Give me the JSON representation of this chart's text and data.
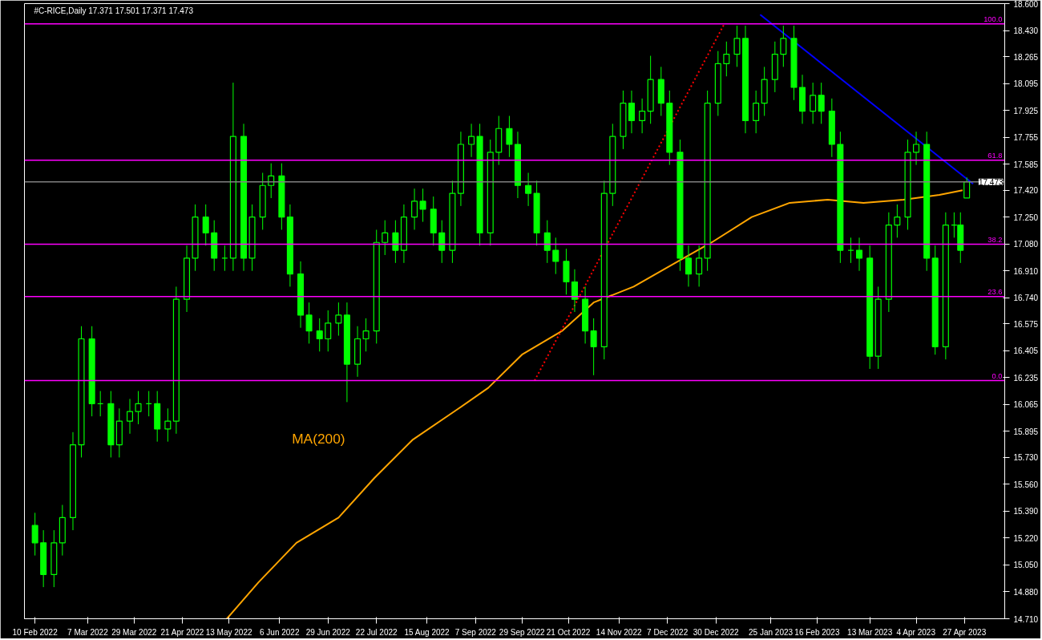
{
  "chart_data": {
    "type": "candlestick",
    "title": "#C-RICE,Daily  17.371 17.501 17.371 17.473",
    "color": "#00ff00",
    "x": [
      "2022-02-10",
      "2022-02-14",
      "2022-02-19",
      "2022-02-23",
      "2022-02-28",
      "2022-03-04",
      "2022-03-09",
      "2022-03-13",
      "2022-03-18",
      "2022-03-22",
      "2022-03-27",
      "2022-03-31",
      "2022-04-05",
      "2022-04-09",
      "2022-04-14",
      "2022-04-18",
      "2022-04-23",
      "2022-04-27",
      "2022-05-02",
      "2022-05-06",
      "2022-05-11",
      "2022-05-15",
      "2022-05-20",
      "2022-05-24",
      "2022-05-29",
      "2022-06-02",
      "2022-06-07",
      "2022-06-11",
      "2022-06-16",
      "2022-06-20",
      "2022-06-25",
      "2022-06-29",
      "2022-07-04",
      "2022-07-08",
      "2022-07-13",
      "2022-07-17",
      "2022-07-22",
      "2022-07-26",
      "2022-07-31",
      "2022-08-04",
      "2022-08-09",
      "2022-08-13",
      "2022-08-18",
      "2022-08-22",
      "2022-08-27",
      "2022-08-31",
      "2022-09-05",
      "2022-09-09",
      "2022-09-14",
      "2022-09-18",
      "2022-09-23",
      "2022-09-27",
      "2022-10-02",
      "2022-10-06",
      "2022-10-11",
      "2022-10-15",
      "2022-10-20",
      "2022-10-24",
      "2022-10-29",
      "2022-11-02",
      "2022-11-07",
      "2022-11-11",
      "2022-11-16",
      "2022-11-20",
      "2022-11-25",
      "2022-11-29",
      "2022-12-04",
      "2022-12-08",
      "2022-12-13",
      "2022-12-17",
      "2022-12-22",
      "2022-12-26",
      "2022-12-31",
      "2023-01-04",
      "2023-01-09",
      "2023-01-13",
      "2023-01-18",
      "2023-01-22",
      "2023-01-27",
      "2023-01-31",
      "2023-02-05",
      "2023-02-09",
      "2023-02-14",
      "2023-02-18",
      "2023-02-23",
      "2023-02-27",
      "2023-03-04",
      "2023-03-08",
      "2023-03-13",
      "2023-03-17",
      "2023-03-22",
      "2023-03-26",
      "2023-03-31",
      "2023-04-04",
      "2023-04-09",
      "2023-04-13",
      "2023-04-18",
      "2023-04-22",
      "2023-04-25",
      "2023-04-28"
    ],
    "ohlc": [
      [
        15.3,
        15.38,
        15.11,
        15.19
      ],
      [
        15.19,
        15.27,
        14.91,
        14.99
      ],
      [
        14.99,
        15.27,
        14.91,
        15.19
      ],
      [
        15.19,
        15.43,
        15.11,
        15.35
      ],
      [
        15.35,
        15.89,
        15.27,
        15.81
      ],
      [
        15.81,
        16.56,
        15.73,
        16.48
      ],
      [
        16.48,
        16.56,
        15.99,
        16.07
      ],
      [
        16.07,
        16.15,
        15.99,
        16.07
      ],
      [
        16.07,
        16.15,
        15.73,
        15.81
      ],
      [
        15.81,
        16.04,
        15.73,
        15.96
      ],
      [
        15.96,
        16.1,
        15.88,
        16.02
      ],
      [
        16.02,
        16.15,
        15.94,
        16.07
      ],
      [
        16.07,
        16.15,
        15.99,
        16.07
      ],
      [
        16.07,
        16.15,
        15.83,
        15.91
      ],
      [
        15.91,
        16.04,
        15.83,
        15.96
      ],
      [
        15.96,
        16.81,
        15.88,
        16.73
      ],
      [
        16.73,
        17.07,
        16.65,
        16.99
      ],
      [
        16.99,
        17.33,
        16.91,
        17.25
      ],
      [
        17.25,
        17.33,
        17.07,
        17.15
      ],
      [
        17.15,
        17.23,
        16.91,
        16.99
      ],
      [
        16.99,
        17.07,
        16.91,
        16.99
      ],
      [
        16.99,
        18.1,
        16.91,
        17.76
      ],
      [
        17.76,
        17.84,
        16.91,
        16.99
      ],
      [
        16.99,
        17.33,
        16.91,
        17.25
      ],
      [
        17.25,
        17.53,
        17.17,
        17.45
      ],
      [
        17.45,
        17.59,
        17.37,
        17.51
      ],
      [
        17.51,
        17.59,
        17.17,
        17.25
      ],
      [
        17.25,
        17.33,
        16.81,
        16.89
      ],
      [
        16.89,
        16.97,
        16.55,
        16.63
      ],
      [
        16.63,
        16.71,
        16.45,
        16.53
      ],
      [
        16.53,
        16.61,
        16.4,
        16.48
      ],
      [
        16.48,
        16.66,
        16.4,
        16.58
      ],
      [
        16.58,
        16.71,
        16.5,
        16.63
      ],
      [
        16.63,
        16.71,
        16.08,
        16.32
      ],
      [
        16.32,
        16.56,
        16.24,
        16.48
      ],
      [
        16.48,
        16.61,
        16.4,
        16.53
      ],
      [
        16.53,
        17.17,
        16.45,
        17.09
      ],
      [
        17.09,
        17.23,
        17.01,
        17.15
      ],
      [
        17.15,
        17.23,
        16.96,
        17.04
      ],
      [
        17.04,
        17.33,
        16.96,
        17.25
      ],
      [
        17.25,
        17.43,
        17.17,
        17.35
      ],
      [
        17.35,
        17.43,
        17.22,
        17.3
      ],
      [
        17.3,
        17.38,
        17.07,
        17.15
      ],
      [
        17.15,
        17.23,
        16.96,
        17.04
      ],
      [
        17.04,
        17.48,
        16.96,
        17.4
      ],
      [
        17.4,
        17.79,
        17.32,
        17.71
      ],
      [
        17.71,
        17.84,
        17.63,
        17.76
      ],
      [
        17.76,
        17.84,
        17.07,
        17.15
      ],
      [
        17.15,
        17.74,
        17.07,
        17.66
      ],
      [
        17.66,
        17.89,
        17.58,
        17.81
      ],
      [
        17.81,
        17.89,
        17.63,
        17.71
      ],
      [
        17.71,
        17.79,
        17.37,
        17.45
      ],
      [
        17.45,
        17.53,
        17.32,
        17.4
      ],
      [
        17.4,
        17.48,
        17.07,
        17.15
      ],
      [
        17.15,
        17.23,
        16.96,
        17.04
      ],
      [
        17.04,
        17.12,
        16.89,
        16.97
      ],
      [
        16.97,
        17.05,
        16.76,
        16.84
      ],
      [
        16.84,
        16.92,
        16.65,
        16.73
      ],
      [
        16.73,
        16.81,
        16.45,
        16.53
      ],
      [
        16.53,
        16.61,
        16.25,
        16.43
      ],
      [
        16.43,
        17.48,
        16.35,
        17.4
      ],
      [
        17.4,
        17.84,
        17.32,
        17.76
      ],
      [
        17.76,
        18.05,
        17.68,
        17.97
      ],
      [
        17.97,
        18.05,
        17.78,
        17.86
      ],
      [
        17.86,
        18.0,
        17.78,
        17.92
      ],
      [
        17.92,
        18.27,
        17.84,
        18.12
      ],
      [
        18.12,
        18.2,
        17.89,
        17.97
      ],
      [
        17.97,
        18.05,
        17.58,
        17.66
      ],
      [
        17.66,
        17.74,
        16.91,
        16.99
      ],
      [
        16.99,
        17.07,
        16.81,
        16.89
      ],
      [
        16.89,
        17.07,
        16.81,
        16.99
      ],
      [
        16.99,
        18.05,
        16.91,
        17.97
      ],
      [
        17.97,
        18.3,
        17.89,
        18.22
      ],
      [
        18.22,
        18.36,
        18.14,
        18.28
      ],
      [
        18.28,
        18.46,
        18.2,
        18.38
      ],
      [
        18.38,
        18.46,
        17.78,
        17.86
      ],
      [
        17.86,
        18.05,
        17.78,
        17.97
      ],
      [
        17.97,
        18.2,
        17.89,
        18.12
      ],
      [
        18.12,
        18.36,
        18.04,
        18.28
      ],
      [
        18.28,
        18.46,
        18.2,
        18.38
      ],
      [
        18.38,
        18.46,
        17.99,
        18.07
      ],
      [
        18.07,
        18.15,
        17.84,
        17.92
      ],
      [
        17.92,
        18.1,
        17.84,
        18.02
      ],
      [
        18.02,
        18.1,
        17.84,
        17.92
      ],
      [
        17.92,
        18.0,
        17.63,
        17.71
      ],
      [
        17.71,
        17.79,
        16.96,
        17.04
      ],
      [
        17.04,
        17.12,
        16.96,
        17.04
      ],
      [
        17.04,
        17.12,
        16.91,
        16.99
      ],
      [
        16.99,
        17.07,
        16.29,
        16.37
      ],
      [
        16.37,
        16.81,
        16.29,
        16.73
      ],
      [
        16.73,
        17.28,
        16.65,
        17.2
      ],
      [
        17.2,
        17.33,
        17.12,
        17.25
      ],
      [
        17.25,
        17.74,
        17.17,
        17.66
      ],
      [
        17.66,
        17.79,
        17.58,
        17.71
      ],
      [
        17.71,
        17.79,
        16.91,
        16.99
      ],
      [
        16.99,
        17.07,
        16.38,
        16.43
      ],
      [
        16.43,
        17.28,
        16.35,
        17.2
      ],
      [
        17.2,
        17.28,
        17.12,
        17.2
      ],
      [
        17.2,
        17.28,
        16.96,
        17.04
      ],
      [
        17.371,
        17.501,
        17.371,
        17.473
      ]
    ],
    "series": [
      {
        "type": "line",
        "color": "#ffa500",
        "x": [
          "2022-05-12",
          "2022-05-27",
          "2022-06-14",
          "2022-07-04",
          "2022-07-21",
          "2022-08-08",
          "2022-08-30",
          "2022-09-13",
          "2022-09-29",
          "2022-10-18",
          "2022-11-02",
          "2022-11-21",
          "2022-12-12",
          "2022-12-28",
          "2023-01-16",
          "2023-02-03",
          "2023-02-21",
          "2023-03-10",
          "2023-03-29",
          "2023-04-15",
          "2023-04-26"
        ],
        "values": [
          14.71,
          14.94,
          15.19,
          15.35,
          15.6,
          15.84,
          16.04,
          16.17,
          16.38,
          16.53,
          16.71,
          16.81,
          16.97,
          17.09,
          17.25,
          17.34,
          17.36,
          17.34,
          17.36,
          17.39,
          17.42
        ]
      },
      {
        "type": "line",
        "color": "#0000ff",
        "x": [
          "2023-01-20",
          "2023-05-01"
        ],
        "values": [
          18.53,
          17.46
        ]
      },
      {
        "type": "line",
        "color": "#ff0000",
        "line_style": "dotted",
        "x": [
          "2022-10-05",
          "2023-01-03"
        ],
        "values": [
          16.216,
          18.472
        ]
      }
    ],
    "annotations": [
      "MA(200)",
      {
        "text": "100.0",
        "x": "2023-05-16",
        "y": 18.472
      },
      {
        "text": "61.8",
        "x": "2023-05-16",
        "y": 17.61
      },
      {
        "text": "38.2",
        "x": "2023-05-16",
        "y": 17.078
      },
      {
        "text": "23.6",
        "x": "2023-05-16",
        "y": 16.748
      },
      {
        "text": "0.0",
        "x": "2023-05-16",
        "y": 16.216
      }
    ],
    "ref_lines": [
      {
        "axis": "y",
        "value": 18.472,
        "color": "#ff00ff"
      },
      {
        "axis": "y",
        "value": 17.61,
        "color": "#ff00ff"
      },
      {
        "axis": "y",
        "value": 17.078,
        "color": "#ff00ff"
      },
      {
        "axis": "y",
        "value": 16.748,
        "color": "#ff00ff"
      },
      {
        "axis": "y",
        "value": 16.216,
        "color": "#ff00ff"
      },
      {
        "axis": "y",
        "value": 17.473,
        "label": "17.473",
        "color": "#808080"
      }
    ],
    "xlim": [
      "2022-02-05",
      "2023-05-16"
    ],
    "xticks": [
      {
        "value": "2022-02-10",
        "label": "10 Feb 2022"
      },
      {
        "value": "2022-03-07",
        "label": "7 Mar 2022"
      },
      {
        "value": "2022-03-29",
        "label": "29 Mar 2022"
      },
      {
        "value": "2022-04-21",
        "label": "21 Apr 2022"
      },
      {
        "value": "2022-05-13",
        "label": "13 May 2022"
      },
      {
        "value": "2022-06-06",
        "label": "6 Jun 2022"
      },
      {
        "value": "2022-06-29",
        "label": "29 Jun 2022"
      },
      {
        "value": "2022-07-22",
        "label": "22 Jul 2022"
      },
      {
        "value": "2022-08-15",
        "label": "15 Aug 2022"
      },
      {
        "value": "2022-09-07",
        "label": "7 Sep 2022"
      },
      {
        "value": "2022-09-29",
        "label": "29 Sep 2022"
      },
      {
        "value": "2022-10-21",
        "label": "21 Oct 2022"
      },
      {
        "value": "2022-11-14",
        "label": "14 Nov 2022"
      },
      {
        "value": "2022-12-07",
        "label": "7 Dec 2022"
      },
      {
        "value": "2022-12-30",
        "label": "30 Dec 2022"
      },
      {
        "value": "2023-01-25",
        "label": "25 Jan 2023"
      },
      {
        "value": "2023-02-16",
        "label": "16 Feb 2023"
      },
      {
        "value": "2023-03-13",
        "label": "13 Mar 2023"
      },
      {
        "value": "2023-04-04",
        "label": "4 Apr 2023"
      },
      {
        "value": "2023-04-27",
        "label": "27 Apr 2023"
      }
    ],
    "ylim": [
      14.71,
      18.6
    ],
    "yticks": [
      {
        "value": 14.71,
        "label": "14.710"
      },
      {
        "value": 14.88,
        "label": "14.880"
      },
      {
        "value": 15.05,
        "label": "15.050"
      },
      {
        "value": 15.22,
        "label": "15.220"
      },
      {
        "value": 15.39,
        "label": "15.390"
      },
      {
        "value": 15.56,
        "label": "15.560"
      },
      {
        "value": 15.73,
        "label": "15.730"
      },
      15.895,
      16.065,
      {
        "value": 16.235,
        "label": "16.235"
      },
      16.405,
      16.575,
      {
        "value": 16.74,
        "label": "16.740"
      },
      {
        "value": 16.91,
        "label": "16.910"
      },
      {
        "value": 17.08,
        "label": "17.080"
      },
      {
        "value": 17.25,
        "label": "17.250"
      },
      {
        "value": 17.42,
        "label": "17.420"
      },
      17.585,
      17.755,
      17.925,
      18.095,
      18.265,
      {
        "value": 18.43,
        "label": "18.430"
      },
      {
        "value": 18.6,
        "label": "18.600"
      }
    ],
    "grid": false
  }
}
